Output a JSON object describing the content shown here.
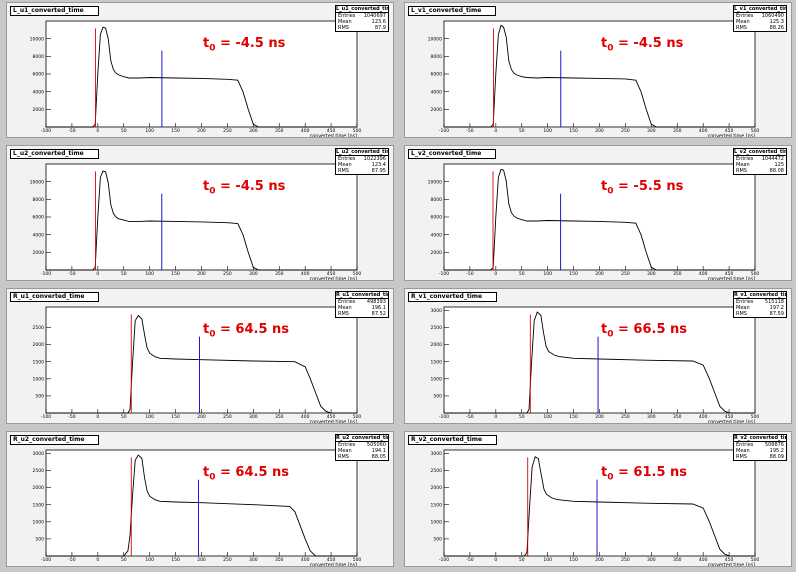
{
  "colors": {
    "histogram": "#000000",
    "t0_line": "#e00000",
    "mean_line": "#0000cc",
    "annotation": "#e00000",
    "panel_bg": "#f2f2f2",
    "canvas_bg": "#c8c8c8"
  },
  "stat_labels": {
    "entries": "Entries",
    "mean": "Mean",
    "rms": "RMS"
  },
  "chart_data": [
    {
      "type": "area",
      "title": "L_u1_converted_time",
      "stats_title": "L_u1_converted_time",
      "stats": {
        "entries": "1040697",
        "mean": "123.6",
        "rms": "87.9"
      },
      "annotation": {
        "prefix": "t",
        "sub": "0",
        "text": " = -4.5 ns"
      },
      "xlabel": "converted time [ns]",
      "ylabel": "",
      "xlim": [
        -100,
        500
      ],
      "ylim": [
        0,
        12000
      ],
      "xticks": [
        -100,
        -50,
        0,
        50,
        100,
        150,
        200,
        250,
        300,
        350,
        400,
        450,
        500
      ],
      "yticks": [
        2000,
        4000,
        6000,
        8000,
        10000
      ],
      "t0": -4.5,
      "mean": 123.6,
      "x": [
        -100,
        -10,
        -5,
        0,
        5,
        10,
        15,
        20,
        25,
        30,
        35,
        40,
        50,
        60,
        80,
        100,
        150,
        200,
        250,
        270,
        280,
        290,
        300,
        310,
        500
      ],
      "y": [
        0,
        0,
        300,
        6000,
        10500,
        11300,
        11200,
        10000,
        7500,
        6500,
        6100,
        5900,
        5700,
        5550,
        5550,
        5600,
        5550,
        5500,
        5400,
        5300,
        4000,
        2000,
        300,
        0,
        0
      ]
    },
    {
      "type": "area",
      "title": "L_v1_converted_time",
      "stats_title": "L_v1_converted_time",
      "stats": {
        "entries": "1060490",
        "mean": "125.3",
        "rms": "88.26"
      },
      "annotation": {
        "prefix": "t",
        "sub": "0",
        "text": " = -4.5 ns"
      },
      "xlabel": "converted time [ns]",
      "ylabel": "",
      "xlim": [
        -100,
        500
      ],
      "ylim": [
        0,
        12000
      ],
      "xticks": [
        -100,
        -50,
        0,
        50,
        100,
        150,
        200,
        250,
        300,
        350,
        400,
        450,
        500
      ],
      "yticks": [
        2000,
        4000,
        6000,
        8000,
        10000
      ],
      "t0": -4.5,
      "mean": 125.3,
      "x": [
        -100,
        -10,
        -5,
        0,
        5,
        10,
        15,
        20,
        25,
        30,
        35,
        40,
        50,
        60,
        80,
        100,
        150,
        200,
        250,
        270,
        280,
        290,
        300,
        310,
        500
      ],
      "y": [
        0,
        0,
        300,
        6000,
        10500,
        11500,
        11300,
        10200,
        7500,
        6500,
        6100,
        5900,
        5700,
        5600,
        5550,
        5600,
        5550,
        5500,
        5450,
        5300,
        4000,
        2000,
        300,
        0,
        0
      ]
    },
    {
      "type": "area",
      "title": "L_u2_converted_time",
      "stats_title": "L_u2_converted_time",
      "stats": {
        "entries": "1022396",
        "mean": "123.4",
        "rms": "87.95"
      },
      "annotation": {
        "prefix": "t",
        "sub": "0",
        "text": " = -4.5 ns"
      },
      "xlabel": "converted time [ns]",
      "ylabel": "",
      "xlim": [
        -100,
        500
      ],
      "ylim": [
        0,
        12000
      ],
      "xticks": [
        -100,
        -50,
        0,
        50,
        100,
        150,
        200,
        250,
        300,
        350,
        400,
        450,
        500
      ],
      "yticks": [
        2000,
        4000,
        6000,
        8000,
        10000
      ],
      "t0": -4.5,
      "mean": 123.4,
      "x": [
        -100,
        -10,
        -5,
        0,
        5,
        10,
        15,
        20,
        25,
        30,
        35,
        40,
        50,
        60,
        80,
        100,
        150,
        200,
        250,
        270,
        280,
        290,
        300,
        310,
        500
      ],
      "y": [
        0,
        0,
        300,
        6000,
        10500,
        11200,
        11100,
        9900,
        7400,
        6400,
        6000,
        5800,
        5650,
        5500,
        5500,
        5550,
        5500,
        5450,
        5350,
        5250,
        4000,
        2000,
        300,
        0,
        0
      ]
    },
    {
      "type": "area",
      "title": "L_v2_converted_time",
      "stats_title": "L_v2_converted_time",
      "stats": {
        "entries": "1044472",
        "mean": "125",
        "rms": "88.08"
      },
      "annotation": {
        "prefix": "t",
        "sub": "0",
        "text": " = -5.5 ns"
      },
      "xlabel": "converted time [ns]",
      "ylabel": "",
      "xlim": [
        -100,
        500
      ],
      "ylim": [
        0,
        12000
      ],
      "xticks": [
        -100,
        -50,
        0,
        50,
        100,
        150,
        200,
        250,
        300,
        350,
        400,
        450,
        500
      ],
      "yticks": [
        2000,
        4000,
        6000,
        8000,
        10000
      ],
      "t0": -5.5,
      "mean": 125,
      "x": [
        -100,
        -10,
        -5,
        0,
        5,
        10,
        15,
        20,
        25,
        30,
        35,
        40,
        50,
        60,
        80,
        100,
        150,
        200,
        250,
        270,
        280,
        290,
        300,
        310,
        500
      ],
      "y": [
        0,
        0,
        300,
        6000,
        10500,
        11400,
        11300,
        10100,
        7500,
        6500,
        6100,
        5900,
        5700,
        5550,
        5550,
        5600,
        5550,
        5500,
        5400,
        5300,
        4000,
        2000,
        300,
        0,
        0
      ]
    },
    {
      "type": "area",
      "title": "R_u1_converted_time",
      "stats_title": "R_u1_converted_time",
      "stats": {
        "entries": "498393",
        "mean": "196.1",
        "rms": "87.52"
      },
      "annotation": {
        "prefix": "t",
        "sub": "0",
        "text": " = 64.5 ns"
      },
      "xlabel": "converted time [ns]",
      "ylabel": "",
      "xlim": [
        -100,
        500
      ],
      "ylim": [
        0,
        3100
      ],
      "xticks": [
        -100,
        -50,
        0,
        50,
        100,
        150,
        200,
        250,
        300,
        350,
        400,
        450,
        500
      ],
      "yticks": [
        500,
        1000,
        1500,
        2000,
        2500
      ],
      "t0": 64.5,
      "mean": 196.1,
      "x": [
        -100,
        58,
        62,
        67,
        72,
        78,
        85,
        90,
        95,
        100,
        110,
        120,
        150,
        200,
        300,
        380,
        400,
        410,
        420,
        430,
        440,
        450,
        500
      ],
      "y": [
        0,
        0,
        100,
        1500,
        2700,
        2850,
        2750,
        2300,
        1900,
        1750,
        1650,
        1600,
        1580,
        1560,
        1520,
        1500,
        1350,
        1000,
        600,
        200,
        50,
        0,
        0
      ]
    },
    {
      "type": "area",
      "title": "R_v1_converted_time",
      "stats_title": "R_v1_converted_time",
      "stats": {
        "entries": "515118",
        "mean": "197.2",
        "rms": "87.59"
      },
      "annotation": {
        "prefix": "t",
        "sub": "0",
        "text": " = 66.5 ns"
      },
      "xlabel": "converted time [ns]",
      "ylabel": "",
      "xlim": [
        -100,
        500
      ],
      "ylim": [
        0,
        3100
      ],
      "xticks": [
        -100,
        -50,
        0,
        50,
        100,
        150,
        200,
        250,
        300,
        350,
        400,
        450,
        500
      ],
      "yticks": [
        500,
        1000,
        1500,
        2000,
        2500,
        3000
      ],
      "t0": 66.5,
      "mean": 197.2,
      "x": [
        -100,
        60,
        64,
        69,
        74,
        80,
        87,
        92,
        97,
        102,
        112,
        122,
        150,
        200,
        300,
        380,
        400,
        412,
        422,
        432,
        442,
        452,
        500
      ],
      "y": [
        0,
        0,
        100,
        1500,
        2700,
        2950,
        2850,
        2350,
        1950,
        1800,
        1700,
        1650,
        1600,
        1580,
        1540,
        1520,
        1400,
        1000,
        600,
        200,
        50,
        0,
        0
      ]
    },
    {
      "type": "area",
      "title": "R_u2_converted_time",
      "stats_title": "R_u2_converted_time",
      "stats": {
        "entries": "505060",
        "mean": "194.1",
        "rms": "88.05"
      },
      "annotation": {
        "prefix": "t",
        "sub": "0",
        "text": " = 64.5 ns"
      },
      "xlabel": "converted time [ns]",
      "ylabel": "",
      "xlim": [
        -100,
        500
      ],
      "ylim": [
        0,
        3100
      ],
      "xticks": [
        -100,
        -50,
        0,
        50,
        100,
        150,
        200,
        250,
        300,
        350,
        400,
        450,
        500
      ],
      "yticks": [
        500,
        1000,
        1500,
        2000,
        2500,
        3000
      ],
      "t0": 64.5,
      "mean": 194.1,
      "x": [
        -100,
        50,
        58,
        62,
        67,
        72,
        78,
        85,
        90,
        95,
        100,
        110,
        120,
        150,
        200,
        300,
        370,
        380,
        390,
        400,
        410,
        420,
        500
      ],
      "y": [
        0,
        0,
        150,
        600,
        1800,
        2800,
        2950,
        2850,
        2300,
        1900,
        1750,
        1650,
        1600,
        1580,
        1560,
        1500,
        1450,
        1300,
        900,
        500,
        150,
        0,
        0
      ]
    },
    {
      "type": "area",
      "title": "R_v2_converted_time",
      "stats_title": "R_v2_converted_time",
      "stats": {
        "entries": "508876",
        "mean": "195.2",
        "rms": "88.09"
      },
      "annotation": {
        "prefix": "t",
        "sub": "0",
        "text": " = 61.5 ns"
      },
      "xlabel": "converted time [ns]",
      "ylabel": "",
      "xlim": [
        -100,
        500
      ],
      "ylim": [
        0,
        3100
      ],
      "xticks": [
        -100,
        -50,
        0,
        50,
        100,
        150,
        200,
        250,
        300,
        350,
        400,
        450,
        500
      ],
      "yticks": [
        500,
        1000,
        1500,
        2000,
        2500,
        3000
      ],
      "t0": 61.5,
      "mean": 195.2,
      "x": [
        -100,
        55,
        60,
        65,
        70,
        76,
        82,
        88,
        93,
        98,
        108,
        118,
        150,
        200,
        300,
        380,
        400,
        412,
        422,
        432,
        442,
        452,
        500
      ],
      "y": [
        0,
        0,
        100,
        1400,
        2600,
        2900,
        2850,
        2350,
        1950,
        1800,
        1700,
        1650,
        1600,
        1580,
        1540,
        1520,
        1400,
        1000,
        600,
        200,
        50,
        0,
        0
      ]
    }
  ]
}
